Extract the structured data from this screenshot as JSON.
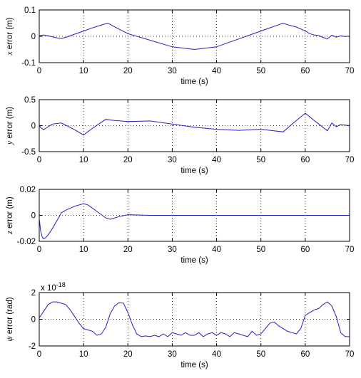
{
  "chart_data": [
    {
      "type": "line",
      "xlabel": "time (s)",
      "ylabel_var": "x",
      "ylabel_rest": " error (m)",
      "xlim": [
        0,
        70
      ],
      "ylim": [
        -0.1,
        0.1
      ],
      "xticks": [
        "0",
        "10",
        "20",
        "30",
        "40",
        "50",
        "60",
        "70"
      ],
      "yticks": [
        "-0.1",
        "0",
        "0.1"
      ],
      "ytick_values": [
        -0.1,
        0,
        0.1
      ],
      "exponent_label": "",
      "grid": true,
      "series": [
        {
          "color": "#1f1fbf",
          "x": [
            0,
            1,
            2,
            3,
            4,
            5,
            6,
            8,
            10,
            12,
            14,
            15.5,
            17,
            20,
            25,
            30,
            35,
            40,
            45,
            50,
            55,
            56,
            58,
            60,
            61,
            62,
            63,
            64,
            65,
            66,
            67,
            68,
            69,
            70
          ],
          "y": [
            0.002,
            0.005,
            0.002,
            -0.002,
            -0.006,
            -0.008,
            -0.004,
            0.008,
            0.02,
            0.032,
            0.043,
            0.05,
            0.036,
            0.01,
            -0.015,
            -0.04,
            -0.05,
            -0.04,
            -0.01,
            0.02,
            0.05,
            0.044,
            0.035,
            0.02,
            0.01,
            0.005,
            0.003,
            -0.004,
            -0.01,
            0.004,
            -0.003,
            0.002,
            -0.001,
            0.001
          ]
        }
      ]
    },
    {
      "type": "line",
      "xlabel": "time (s)",
      "ylabel_var": "y",
      "ylabel_rest": " error (m)",
      "xlim": [
        0,
        70
      ],
      "ylim": [
        -0.5,
        0.5
      ],
      "xticks": [
        "0",
        "10",
        "20",
        "30",
        "40",
        "50",
        "60",
        "70"
      ],
      "yticks": [
        "-0.5",
        "0",
        "0.5"
      ],
      "ytick_values": [
        -0.5,
        0,
        0.5
      ],
      "exponent_label": "",
      "grid": true,
      "series": [
        {
          "color": "#1f1fbf",
          "x": [
            0,
            0.5,
            1,
            2,
            3,
            5,
            8,
            10,
            12,
            15,
            17,
            20,
            25,
            30,
            35,
            40,
            45,
            50,
            55,
            58,
            60,
            62,
            65,
            66,
            67,
            68,
            70
          ],
          "y": [
            0,
            -0.05,
            -0.08,
            -0.02,
            0.03,
            0.05,
            -0.08,
            -0.18,
            -0.05,
            0.12,
            0.1,
            0.08,
            0.09,
            0.03,
            -0.03,
            -0.07,
            -0.09,
            -0.07,
            -0.12,
            0.1,
            0.24,
            0.1,
            -0.1,
            0.05,
            -0.02,
            0.02,
            0
          ]
        }
      ]
    },
    {
      "type": "line",
      "xlabel": "time (s)",
      "ylabel_var": "z",
      "ylabel_rest": " error (m)",
      "xlim": [
        0,
        70
      ],
      "ylim": [
        -0.02,
        0.02
      ],
      "xticks": [
        "0",
        "10",
        "20",
        "30",
        "40",
        "50",
        "60",
        "70"
      ],
      "yticks": [
        "-0.02",
        "0",
        "0.02"
      ],
      "ytick_values": [
        -0.02,
        0,
        0.02
      ],
      "exponent_label": "",
      "grid": true,
      "series": [
        {
          "color": "#1f1fbf",
          "x": [
            0,
            0.3,
            0.7,
            1,
            1.5,
            2,
            3,
            4,
            5,
            6,
            8,
            10,
            11,
            13,
            15,
            16,
            18,
            20,
            22,
            25,
            30,
            40,
            50,
            60,
            70
          ],
          "y": [
            -0.002,
            -0.012,
            -0.017,
            -0.018,
            -0.017,
            -0.015,
            -0.01,
            -0.004,
            0.002,
            0.004,
            0.007,
            0.009,
            0.008,
            0.003,
            -0.002,
            -0.003,
            -0.001,
            0.0005,
            0.0003,
            0,
            0,
            0,
            0,
            0,
            0
          ]
        }
      ]
    },
    {
      "type": "line",
      "xlabel": "time (s)",
      "ylabel_var": "ψ",
      "ylabel_rest": " error (rad)",
      "xlim": [
        0,
        70
      ],
      "ylim": [
        -2,
        2
      ],
      "xticks": [
        "0",
        "10",
        "20",
        "30",
        "40",
        "50",
        "60",
        "70"
      ],
      "yticks": [
        "-2",
        "0",
        "2"
      ],
      "ytick_values": [
        -2,
        0,
        2
      ],
      "exponent_label": "x 10",
      "exponent_power": "-18",
      "grid": true,
      "series": [
        {
          "color": "#1f1fbf",
          "x": [
            0,
            1,
            2,
            3,
            4,
            5,
            6,
            7,
            8,
            9,
            10,
            11,
            12,
            13,
            14,
            15,
            16,
            17,
            18,
            19,
            20,
            21,
            22,
            23,
            24,
            25,
            26,
            27,
            28,
            29,
            30,
            31,
            32,
            33,
            34,
            35,
            36,
            37,
            38,
            39,
            40,
            41,
            42,
            43,
            44,
            45,
            46,
            47,
            48,
            49,
            50,
            51,
            52,
            53,
            54,
            55,
            56,
            57,
            58,
            59,
            60,
            61,
            62,
            63,
            64,
            65,
            66,
            67,
            68,
            69,
            70
          ],
          "y": [
            0.1,
            0.6,
            1.1,
            1.3,
            1.3,
            1.2,
            1.1,
            0.7,
            0.2,
            -0.3,
            -0.7,
            -0.8,
            -0.9,
            -1.2,
            -1.1,
            -0.6,
            0.4,
            1.0,
            1.25,
            1.2,
            0.5,
            -0.4,
            -1.1,
            -1.3,
            -1.25,
            -1.3,
            -1.2,
            -1.3,
            -1.1,
            -1.3,
            -1.0,
            -1.1,
            -1.2,
            -1.0,
            -1.2,
            -1.2,
            -1.0,
            -1.3,
            -1.1,
            -1.0,
            -1.2,
            -1.0,
            -1.1,
            -1.3,
            -1.0,
            -1.1,
            -1.2,
            -1.3,
            -0.9,
            -1.2,
            -1.1,
            -0.7,
            -0.3,
            -0.2,
            -0.5,
            -0.7,
            -0.9,
            -1.0,
            -1.1,
            -0.7,
            0.3,
            0.5,
            0.7,
            0.8,
            1.1,
            1.3,
            1.0,
            0.2,
            -1.0,
            -1.3,
            -1.3
          ]
        }
      ]
    }
  ]
}
